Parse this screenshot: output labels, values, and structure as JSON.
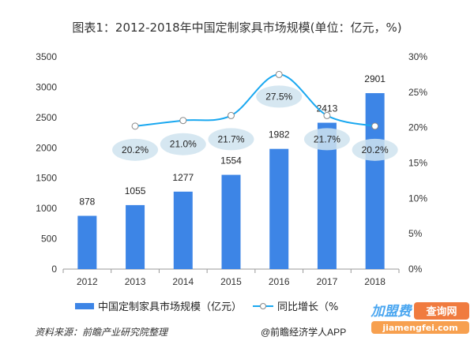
{
  "chart_data": {
    "type": "bar+line",
    "title": "图表1：2012-2018年中国定制家具市场规模(单位：亿元，%)",
    "categories": [
      "2012",
      "2013",
      "2014",
      "2015",
      "2016",
      "2017",
      "2018"
    ],
    "series": [
      {
        "name": "中国定制家具市场规模（亿元）",
        "type": "bar",
        "axis": "left",
        "color": "#3d85e6",
        "values": [
          878,
          1055,
          1277,
          1554,
          1982,
          2413,
          2901
        ],
        "labels": [
          "878",
          "1055",
          "1277",
          "1554",
          "1982",
          "2413",
          "2901"
        ]
      },
      {
        "name": "同比增长（%",
        "type": "line",
        "axis": "right",
        "color": "#1aa8f0",
        "values": [
          null,
          20.2,
          21.0,
          21.7,
          27.5,
          21.7,
          20.2
        ],
        "labels": [
          "",
          "20.2%",
          "21.0%",
          "21.7%",
          "27.5%",
          "21.7%",
          "20.2%"
        ]
      }
    ],
    "ylim_left": [
      0,
      3500
    ],
    "yticks_left": [
      "0",
      "500",
      "1000",
      "1500",
      "2000",
      "2500",
      "3000",
      "3500"
    ],
    "ylim_right": [
      0,
      30
    ],
    "yticks_right": [
      "0%",
      "5%",
      "10%",
      "15%",
      "20%",
      "25%",
      "30%"
    ],
    "grid": false,
    "legend_position": "bottom"
  },
  "footer": {
    "source": "资料来源：前瞻产业研究院整理",
    "credit": "@前瞻经济学人APP"
  },
  "watermark": {
    "logo_text": "加盟费查询网",
    "url_text": "jiamengfei.com"
  }
}
